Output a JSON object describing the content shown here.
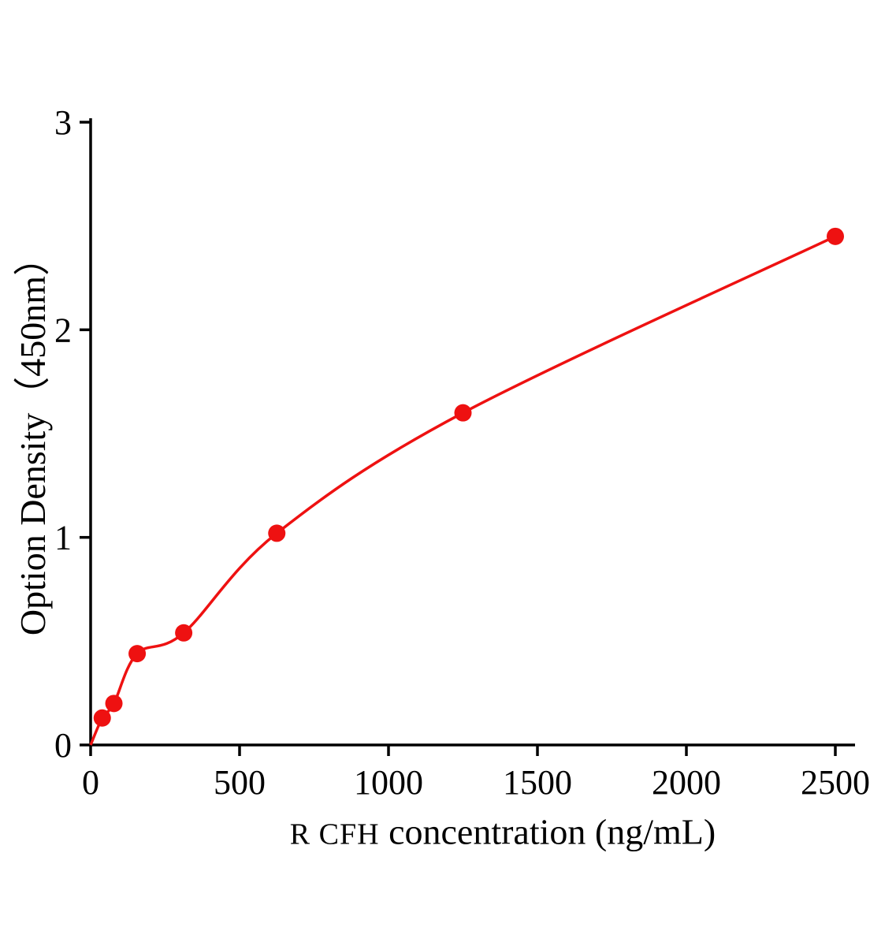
{
  "chart_data": {
    "type": "scatter",
    "title": "",
    "xlabel_prefix": "R CFH",
    "xlabel": " concentration (ng/mL)",
    "ylabel": "Option Density（450nm）",
    "x": [
      39.06,
      78.13,
      156.25,
      312.5,
      625,
      1250,
      2500
    ],
    "y": [
      0.13,
      0.2,
      0.44,
      0.54,
      1.02,
      1.6,
      2.45
    ],
    "curve_start": {
      "x": 0,
      "y": 0
    },
    "xlim": [
      0,
      2500
    ],
    "ylim": [
      0,
      3
    ],
    "x_ticks": [
      0,
      500,
      1000,
      1500,
      2000,
      2500
    ],
    "y_ticks": [
      0,
      1,
      2,
      3
    ],
    "legend": null,
    "grid": false,
    "point_color": "#ee1111",
    "line_color": "#ee1111",
    "axis_color": "#000000",
    "tick_font_size": 44,
    "point_radius": 11
  }
}
